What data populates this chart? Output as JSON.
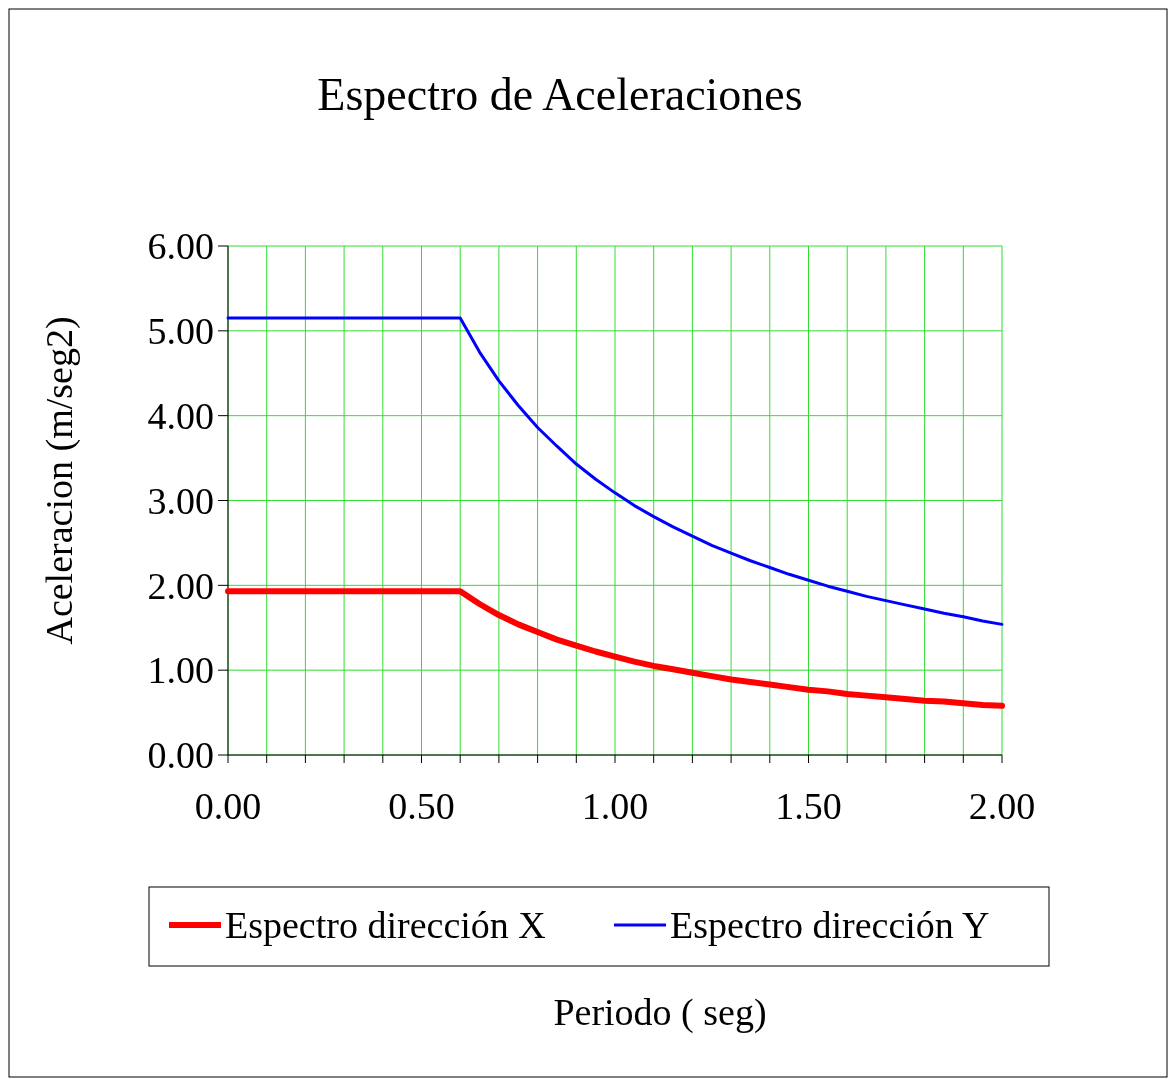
{
  "chart_data": {
    "type": "line",
    "title": "Espectro de Aceleraciones",
    "xlabel": "Periodo ( seg)",
    "ylabel": "Aceleracion (m/seg2)",
    "x": [
      0,
      0.6,
      0.65,
      0.7,
      0.75,
      0.8,
      0.85,
      0.9,
      0.95,
      1.0,
      1.05,
      1.1,
      1.15,
      1.2,
      1.25,
      1.3,
      1.35,
      1.4,
      1.45,
      1.5,
      1.55,
      1.6,
      1.65,
      1.7,
      1.75,
      1.8,
      1.85,
      1.9,
      1.95,
      2.0
    ],
    "series": [
      {
        "name": "Espectro dirección X",
        "color": "#ff0000",
        "values": [
          1.93,
          1.93,
          1.78,
          1.65,
          1.54,
          1.45,
          1.36,
          1.29,
          1.22,
          1.16,
          1.1,
          1.05,
          1.01,
          0.97,
          0.93,
          0.89,
          0.86,
          0.83,
          0.8,
          0.77,
          0.75,
          0.72,
          0.7,
          0.68,
          0.66,
          0.64,
          0.63,
          0.61,
          0.59,
          0.58
        ]
      },
      {
        "name": "Espectro dirección Y",
        "color": "#0000ff",
        "values": [
          5.15,
          5.15,
          4.75,
          4.41,
          4.12,
          3.86,
          3.64,
          3.43,
          3.25,
          3.09,
          2.94,
          2.81,
          2.69,
          2.58,
          2.47,
          2.38,
          2.29,
          2.21,
          2.13,
          2.06,
          1.99,
          1.93,
          1.87,
          1.82,
          1.77,
          1.72,
          1.67,
          1.63,
          1.58,
          1.54
        ]
      }
    ],
    "xlim": [
      0,
      2
    ],
    "xticks": [
      {
        "value": 0,
        "label": "0.00"
      },
      {
        "value": 0.1,
        "label": null
      },
      {
        "value": 0.2,
        "label": null
      },
      {
        "value": 0.3,
        "label": null
      },
      {
        "value": 0.4,
        "label": null
      },
      {
        "value": 0.5,
        "label": "0.50"
      },
      {
        "value": 0.6,
        "label": null
      },
      {
        "value": 0.7,
        "label": null
      },
      {
        "value": 0.8,
        "label": null
      },
      {
        "value": 0.9,
        "label": null
      },
      {
        "value": 1,
        "label": "1.00"
      },
      {
        "value": 1.1,
        "label": null
      },
      {
        "value": 1.2,
        "label": null
      },
      {
        "value": 1.3,
        "label": null
      },
      {
        "value": 1.4,
        "label": null
      },
      {
        "value": 1.5,
        "label": "1.50"
      },
      {
        "value": 1.6,
        "label": null
      },
      {
        "value": 1.7,
        "label": null
      },
      {
        "value": 1.8,
        "label": null
      },
      {
        "value": 1.9,
        "label": null
      },
      {
        "value": 2,
        "label": "2.00"
      }
    ],
    "ylim": [
      0,
      6
    ],
    "yticks": [
      {
        "value": 0,
        "label": "0.00"
      },
      {
        "value": 1,
        "label": "1.00"
      },
      {
        "value": 2,
        "label": "2.00"
      },
      {
        "value": 3,
        "label": "3.00"
      },
      {
        "value": 4,
        "label": "4.00"
      },
      {
        "value": 5,
        "label": "5.00"
      },
      {
        "value": 6,
        "label": "6.00"
      }
    ],
    "grid": true,
    "legend": "bottom",
    "marker": "none",
    "line_style": "solid"
  }
}
